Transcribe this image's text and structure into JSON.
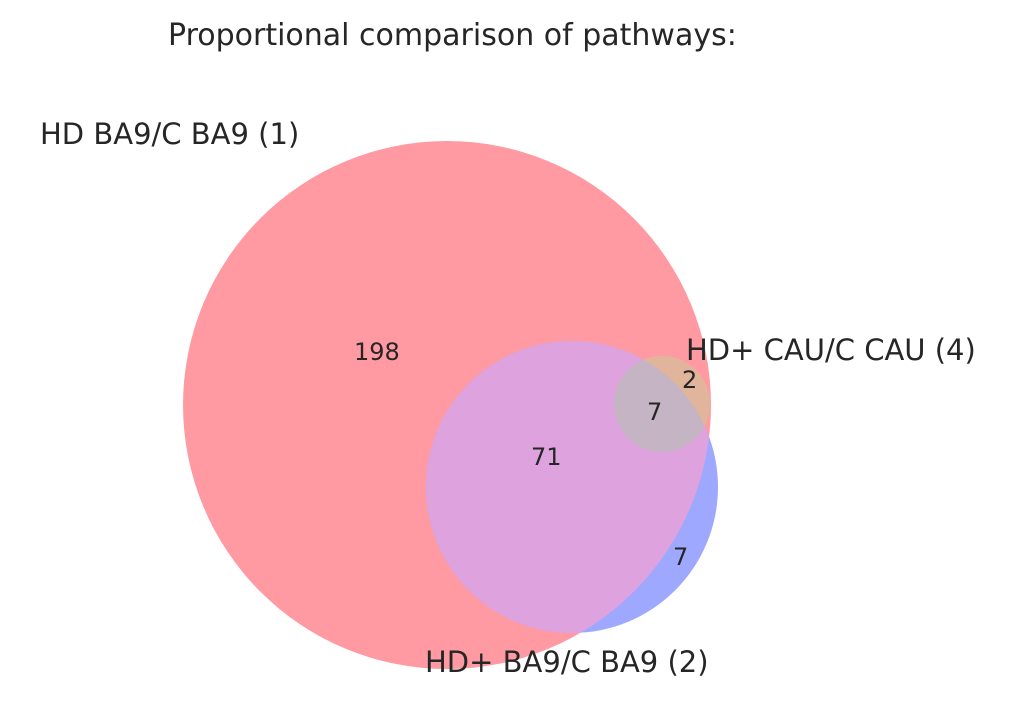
{
  "title": "Proportional comparison of pathways:",
  "sets": [
    {
      "id": "set1",
      "label": "HD BA9/C BA9 (1)",
      "color": "#ff6b78"
    },
    {
      "id": "set2",
      "label": "HD+ BA9/C BA9 (2)",
      "color": "#6b7dff"
    },
    {
      "id": "set4",
      "label": "HD+ CAU/C CAU (4)",
      "color": "#ffb07a"
    }
  ],
  "regions": {
    "only_1": "198",
    "set1_and_set2": "71",
    "only_2": "7",
    "set1_and_set4": "2",
    "all_three": "7"
  },
  "colors": {
    "set1": "#ff9aa3",
    "set2": "#9ea8ff",
    "set4": "#e1b49c",
    "overlap_1_2": "#dea3de",
    "overlap_all": "#c4b4c4"
  }
}
